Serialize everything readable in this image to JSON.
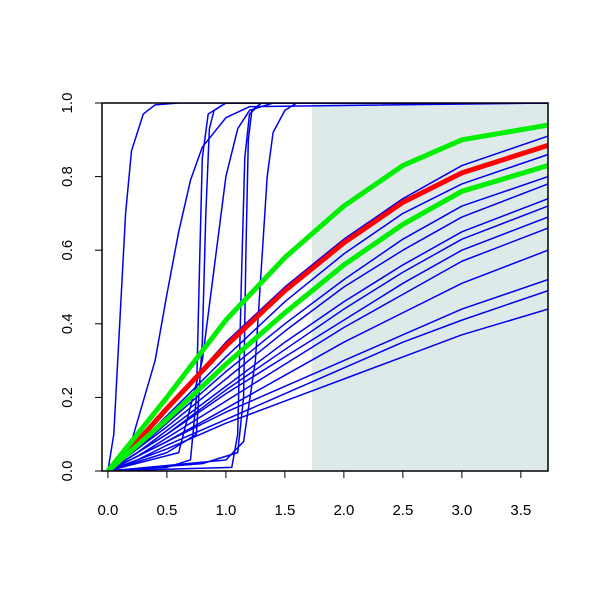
{
  "chart_data": {
    "type": "line",
    "xlim": [
      -0.05,
      3.73
    ],
    "ylim": [
      0,
      1
    ],
    "xticks": [
      {
        "value": 0,
        "label": "0.0"
      },
      {
        "value": 0.5,
        "label": "0.5"
      },
      {
        "value": 1,
        "label": "1.0"
      },
      {
        "value": 1.5,
        "label": "1.5"
      },
      {
        "value": 2,
        "label": "2.0"
      },
      {
        "value": 2.5,
        "label": "2.5"
      },
      {
        "value": 3,
        "label": "3.0"
      },
      {
        "value": 3.5,
        "label": "3.5"
      }
    ],
    "yticks": [
      {
        "value": 0,
        "label": "0.0"
      },
      {
        "value": 0.2,
        "label": "0.2"
      },
      {
        "value": 0.4,
        "label": "0.4"
      },
      {
        "value": 0.6,
        "label": "0.6"
      },
      {
        "value": 0.8,
        "label": "0.8"
      },
      {
        "value": 1,
        "label": "1.0"
      }
    ],
    "shaded_xrange": [
      1.73,
      3.73
    ],
    "shade_color": "#deeaea",
    "series": [
      {
        "color": "#0000ee",
        "linewidth": 1.5,
        "x": [
          0,
          0.25,
          0.5,
          1,
          1.5,
          2,
          2.5,
          3,
          3.73
        ],
        "values": [
          0,
          0.08,
          0.17,
          0.35,
          0.5,
          0.63,
          0.74,
          0.83,
          0.91
        ]
      },
      {
        "color": "#0000ee",
        "linewidth": 1.5,
        "x": [
          0,
          0.25,
          0.5,
          1,
          1.5,
          2,
          2.5,
          3,
          3.73
        ],
        "values": [
          0,
          0.07,
          0.15,
          0.31,
          0.46,
          0.59,
          0.7,
          0.78,
          0.86
        ]
      },
      {
        "color": "#0000ee",
        "linewidth": 1.5,
        "x": [
          0,
          0.25,
          0.5,
          1,
          1.5,
          2,
          2.5,
          3,
          3.73
        ],
        "values": [
          0,
          0.06,
          0.13,
          0.27,
          0.4,
          0.52,
          0.63,
          0.72,
          0.8
        ]
      },
      {
        "color": "#0000ee",
        "linewidth": 1.5,
        "x": [
          0,
          0.25,
          0.5,
          1,
          1.5,
          2,
          2.5,
          3,
          3.73
        ],
        "values": [
          0,
          0.06,
          0.12,
          0.25,
          0.38,
          0.5,
          0.6,
          0.69,
          0.78
        ]
      },
      {
        "color": "#0000ee",
        "linewidth": 1.5,
        "x": [
          0,
          0.25,
          0.5,
          1,
          1.5,
          2,
          2.5,
          3,
          3.73
        ],
        "values": [
          0,
          0.05,
          0.11,
          0.23,
          0.35,
          0.46,
          0.56,
          0.65,
          0.74
        ]
      },
      {
        "color": "#0000ee",
        "linewidth": 1.5,
        "x": [
          0,
          0.25,
          0.5,
          1,
          1.5,
          2,
          2.5,
          3,
          3.73
        ],
        "values": [
          0,
          0.05,
          0.1,
          0.22,
          0.33,
          0.44,
          0.54,
          0.63,
          0.72
        ]
      },
      {
        "color": "#0000ee",
        "linewidth": 1.5,
        "x": [
          0,
          0.25,
          0.5,
          1,
          1.5,
          2,
          2.5,
          3,
          3.73
        ],
        "values": [
          0,
          0.05,
          0.1,
          0.21,
          0.31,
          0.41,
          0.51,
          0.6,
          0.69
        ]
      },
      {
        "color": "#0000ee",
        "linewidth": 1.5,
        "x": [
          0,
          0.25,
          0.5,
          1,
          1.5,
          2,
          2.5,
          3,
          3.73
        ],
        "values": [
          0,
          0.04,
          0.09,
          0.19,
          0.29,
          0.39,
          0.48,
          0.57,
          0.66
        ]
      },
      {
        "color": "#0000ee",
        "linewidth": 1.5,
        "x": [
          0,
          0.25,
          0.5,
          1,
          1.5,
          2,
          2.5,
          3,
          3.73
        ],
        "values": [
          0,
          0.04,
          0.08,
          0.17,
          0.26,
          0.35,
          0.43,
          0.51,
          0.6
        ]
      },
      {
        "color": "#0000ee",
        "linewidth": 1.5,
        "x": [
          0,
          0.25,
          0.5,
          1,
          1.5,
          2,
          2.5,
          3,
          3.73
        ],
        "values": [
          0,
          0.04,
          0.08,
          0.16,
          0.23,
          0.3,
          0.37,
          0.44,
          0.52
        ]
      },
      {
        "color": "#0000ee",
        "linewidth": 1.5,
        "x": [
          0,
          0.25,
          0.5,
          1,
          1.5,
          2,
          2.5,
          3,
          3.73
        ],
        "values": [
          0,
          0.03,
          0.07,
          0.14,
          0.21,
          0.28,
          0.35,
          0.41,
          0.49
        ]
      },
      {
        "color": "#0000ee",
        "linewidth": 1.5,
        "x": [
          0,
          0.25,
          0.5,
          1,
          1.5,
          2,
          2.5,
          3,
          3.73
        ],
        "values": [
          0,
          0.03,
          0.06,
          0.13,
          0.19,
          0.25,
          0.31,
          0.37,
          0.44
        ]
      },
      {
        "color": "#0000ee",
        "linewidth": 1.5,
        "x": [
          0,
          0.05,
          0.1,
          0.15,
          0.2,
          0.3,
          0.4,
          0.6,
          3.73
        ],
        "values": [
          0,
          0.1,
          0.4,
          0.7,
          0.87,
          0.97,
          0.995,
          1,
          1
        ]
      },
      {
        "color": "#0000ee",
        "linewidth": 1.5,
        "x": [
          0,
          0.2,
          0.4,
          0.5,
          0.6,
          0.7,
          0.8,
          1.0,
          1.2,
          3.73
        ],
        "values": [
          0,
          0.08,
          0.3,
          0.48,
          0.65,
          0.79,
          0.88,
          0.96,
          0.99,
          1
        ]
      },
      {
        "color": "#0000ee",
        "linewidth": 1.5,
        "x": [
          0,
          0.5,
          0.75,
          0.8,
          0.83,
          0.86,
          0.9,
          1.0,
          3.73
        ],
        "values": [
          0,
          0.05,
          0.1,
          0.35,
          0.7,
          0.93,
          0.98,
          1,
          1
        ]
      },
      {
        "color": "#0000ee",
        "linewidth": 1.5,
        "x": [
          0,
          0.8,
          1.1,
          1.15,
          1.17,
          1.19,
          1.22,
          1.3,
          3.73
        ],
        "values": [
          0,
          0.02,
          0.05,
          0.2,
          0.6,
          0.9,
          0.98,
          1,
          1
        ]
      },
      {
        "color": "#0000ee",
        "linewidth": 1.5,
        "x": [
          0,
          1.0,
          1.15,
          1.25,
          1.3,
          1.35,
          1.4,
          1.5,
          1.6,
          3.73
        ],
        "values": [
          0,
          0.03,
          0.08,
          0.3,
          0.55,
          0.8,
          0.92,
          0.98,
          1,
          1
        ]
      },
      {
        "color": "#0000ee",
        "linewidth": 1.5,
        "x": [
          0,
          0.5,
          0.7,
          0.75,
          0.78,
          0.8,
          0.85,
          1.0,
          3.73
        ],
        "values": [
          0,
          0.01,
          0.03,
          0.2,
          0.6,
          0.85,
          0.97,
          1,
          1
        ]
      },
      {
        "color": "#0000ee",
        "linewidth": 1.5,
        "x": [
          0,
          1.05,
          1.1,
          1.13,
          1.16,
          1.2,
          1.3,
          3.73
        ],
        "values": [
          0,
          0.01,
          0.1,
          0.5,
          0.85,
          0.97,
          1,
          1
        ]
      },
      {
        "color": "#0000ee",
        "linewidth": 1.5,
        "x": [
          0,
          0.6,
          0.8,
          0.9,
          1.0,
          1.1,
          1.2,
          1.4,
          3.73
        ],
        "values": [
          0,
          0.05,
          0.3,
          0.55,
          0.8,
          0.93,
          0.98,
          1,
          1
        ]
      },
      {
        "color": "#ff0000",
        "linewidth": 5,
        "x": [
          0,
          0.25,
          0.5,
          1,
          1.5,
          2,
          2.5,
          3,
          3.73
        ],
        "values": [
          0,
          0.08,
          0.17,
          0.34,
          0.49,
          0.62,
          0.73,
          0.81,
          0.885
        ]
      },
      {
        "color": "#00ee00",
        "linewidth": 5,
        "x": [
          0,
          0.25,
          0.5,
          1,
          1.5,
          2,
          2.5,
          3,
          3.73
        ],
        "values": [
          0,
          0.1,
          0.2,
          0.41,
          0.58,
          0.72,
          0.83,
          0.9,
          0.94
        ]
      },
      {
        "color": "#00ee00",
        "linewidth": 5,
        "x": [
          0,
          0.25,
          0.5,
          1,
          1.5,
          2,
          2.5,
          3,
          3.73
        ],
        "values": [
          0,
          0.07,
          0.14,
          0.29,
          0.43,
          0.56,
          0.67,
          0.76,
          0.83
        ]
      }
    ]
  }
}
